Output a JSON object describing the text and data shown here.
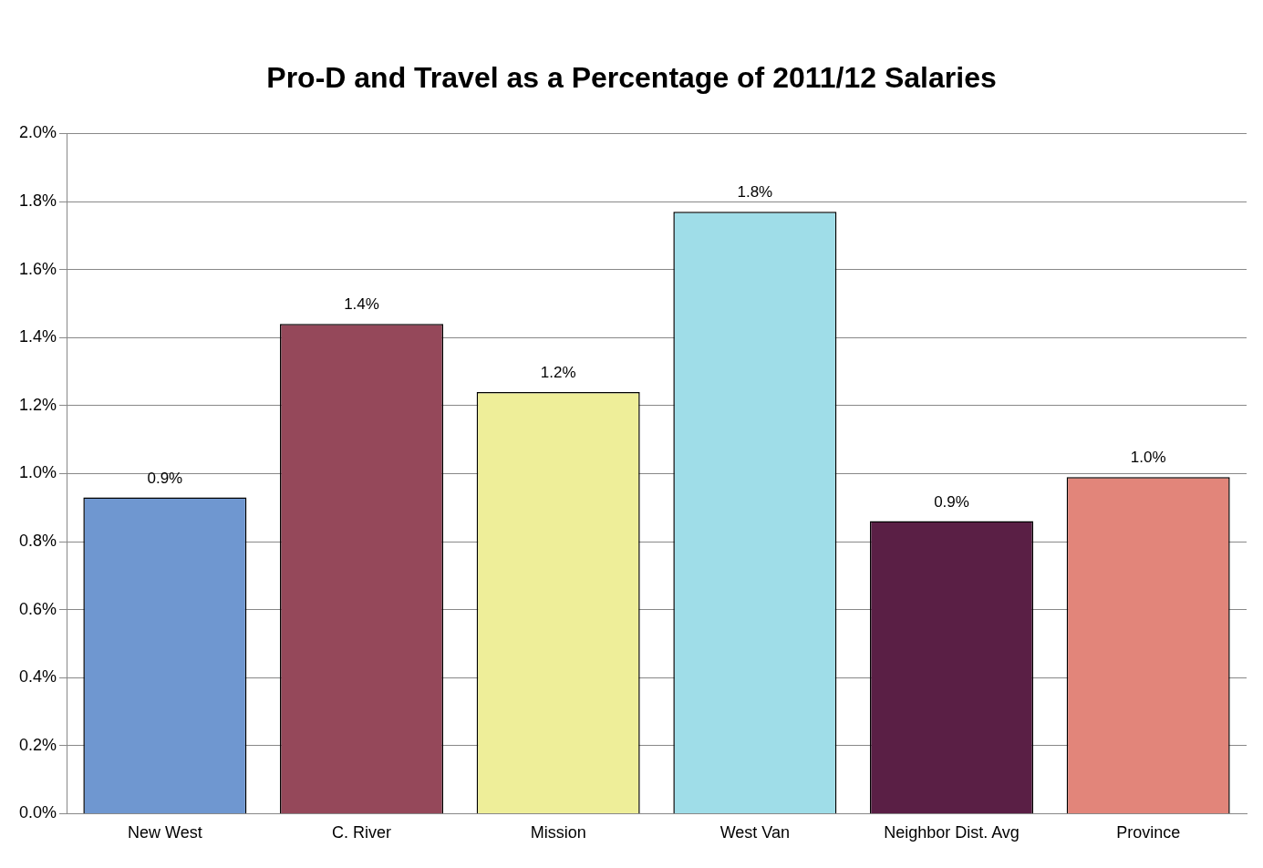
{
  "chart_data": {
    "type": "bar",
    "title": "Pro-D and Travel as a Percentage of 2011/12 Salaries",
    "categories": [
      "New West",
      "C. River",
      "Mission",
      "West Van",
      "Neighbor Dist. Avg",
      "Province"
    ],
    "values": [
      0.93,
      1.44,
      1.24,
      1.77,
      0.86,
      0.99
    ],
    "value_labels": [
      "0.9%",
      "1.4%",
      "1.2%",
      "1.8%",
      "0.9%",
      "1.0%"
    ],
    "colors": [
      "#6f97d0",
      "#95485a",
      "#eeee99",
      "#9fdde8",
      "#5a1f45",
      "#e2857a"
    ],
    "ylim": [
      0,
      2
    ],
    "yticks": [
      {
        "value": 0,
        "label": "0.0%"
      },
      {
        "value": 0.2,
        "label": "0.2%"
      },
      {
        "value": 0.4,
        "label": "0.4%"
      },
      {
        "value": 0.6,
        "label": "0.6%"
      },
      {
        "value": 0.8,
        "label": "0.8%"
      },
      {
        "value": 1,
        "label": "1.0%"
      },
      {
        "value": 1.2,
        "label": "1.2%"
      },
      {
        "value": 1.4,
        "label": "1.4%"
      },
      {
        "value": 1.6,
        "label": "1.6%"
      },
      {
        "value": 1.8,
        "label": "1.8%"
      },
      {
        "value": 2,
        "label": "2.0%"
      }
    ],
    "grid": "y",
    "legend": false
  }
}
